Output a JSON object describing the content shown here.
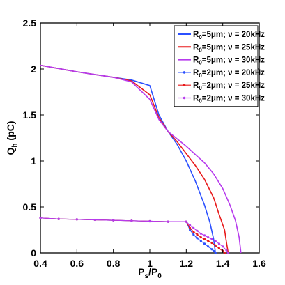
{
  "chart_data": {
    "type": "line",
    "xlabel": "P_s/P_0",
    "ylabel": "Q_h  (pC)",
    "xlim": [
      0.4,
      1.6
    ],
    "ylim": [
      0,
      2.5
    ],
    "xticks": [
      "0.4",
      "0.6",
      "0.8",
      "1",
      "1.2",
      "1.4",
      "1.6"
    ],
    "yticks": [
      "0",
      "0.5",
      "1",
      "1.5",
      "2",
      "2.5"
    ],
    "grid": false,
    "legend_position": "top-right",
    "series": [
      {
        "name": "R0=5μm; ν = 20kHz",
        "label": {
          "main": "R",
          "sub": "0",
          "rest": "=5μm; ν = 20kHz"
        },
        "color": "#2b50ff",
        "marker": "none",
        "x": [
          0.4,
          0.6,
          0.8,
          0.9,
          1.0,
          1.05,
          1.1,
          1.15,
          1.2,
          1.25,
          1.3,
          1.33,
          1.35,
          1.36
        ],
        "y": [
          2.04,
          1.97,
          1.91,
          1.88,
          1.82,
          1.5,
          1.32,
          1.18,
          1.0,
          0.78,
          0.52,
          0.33,
          0.15,
          0.0
        ]
      },
      {
        "name": "R0=5μm; ν = 25kHz",
        "label": {
          "main": "R",
          "sub": "0",
          "rest": "=5μm; ν = 25kHz"
        },
        "color": "#e8191a",
        "marker": "none",
        "x": [
          0.4,
          0.6,
          0.8,
          0.9,
          1.0,
          1.05,
          1.1,
          1.15,
          1.2,
          1.25,
          1.3,
          1.35,
          1.38,
          1.41,
          1.42,
          1.43
        ],
        "y": [
          2.04,
          1.97,
          1.91,
          1.87,
          1.72,
          1.47,
          1.32,
          1.21,
          1.08,
          0.95,
          0.8,
          0.6,
          0.42,
          0.25,
          0.12,
          0.0
        ]
      },
      {
        "name": "R0=5μm; ν = 30kHz",
        "label": {
          "main": "R",
          "sub": "0",
          "rest": "=5μm; ν = 30kHz"
        },
        "color": "#b73bed",
        "marker": "none",
        "x": [
          0.4,
          0.6,
          0.8,
          0.9,
          1.0,
          1.05,
          1.1,
          1.15,
          1.2,
          1.25,
          1.3,
          1.35,
          1.4,
          1.44,
          1.47,
          1.49,
          1.5
        ],
        "y": [
          2.04,
          1.97,
          1.91,
          1.86,
          1.67,
          1.45,
          1.32,
          1.24,
          1.16,
          1.07,
          0.98,
          0.86,
          0.7,
          0.52,
          0.35,
          0.17,
          0.0
        ]
      },
      {
        "name": "R0=2μm; ν = 20kHz",
        "label": {
          "main": "R",
          "sub": "0",
          "rest": "=2μm; ν = 20kHz"
        },
        "color": "#2b50ff",
        "marker": "dot",
        "x": [
          0.4,
          0.5,
          0.6,
          0.7,
          0.8,
          0.9,
          1.0,
          1.1,
          1.2,
          1.22,
          1.24,
          1.26,
          1.28,
          1.3,
          1.32,
          1.34,
          1.35,
          1.36
        ],
        "y": [
          0.38,
          0.37,
          0.365,
          0.36,
          0.355,
          0.35,
          0.345,
          0.34,
          0.34,
          0.25,
          0.2,
          0.16,
          0.13,
          0.1,
          0.07,
          0.04,
          0.02,
          0.0
        ]
      },
      {
        "name": "R0=2μm; ν = 25kHz",
        "label": {
          "main": "R",
          "sub": "0",
          "rest": "=2μm; ν = 25kHz"
        },
        "color": "#e8191a",
        "marker": "dot",
        "x": [
          0.4,
          0.5,
          0.6,
          0.7,
          0.8,
          0.9,
          1.0,
          1.1,
          1.2,
          1.22,
          1.24,
          1.26,
          1.28,
          1.3,
          1.32,
          1.34,
          1.36,
          1.38,
          1.4,
          1.41
        ],
        "y": [
          0.38,
          0.37,
          0.365,
          0.36,
          0.355,
          0.35,
          0.345,
          0.34,
          0.34,
          0.27,
          0.23,
          0.2,
          0.17,
          0.15,
          0.13,
          0.11,
          0.08,
          0.05,
          0.02,
          0.0
        ]
      },
      {
        "name": "R0=2μm; ν = 30kHz",
        "label": {
          "main": "R",
          "sub": "0",
          "rest": "=2μm; ν = 30kHz"
        },
        "color": "#b73bed",
        "marker": "dot",
        "x": [
          0.4,
          0.5,
          0.6,
          0.7,
          0.8,
          0.9,
          1.0,
          1.1,
          1.2,
          1.22,
          1.24,
          1.26,
          1.28,
          1.3,
          1.32,
          1.34,
          1.36,
          1.38,
          1.4,
          1.42,
          1.43
        ],
        "y": [
          0.38,
          0.37,
          0.365,
          0.36,
          0.355,
          0.35,
          0.345,
          0.34,
          0.34,
          0.3,
          0.27,
          0.24,
          0.21,
          0.19,
          0.17,
          0.15,
          0.13,
          0.1,
          0.07,
          0.03,
          0.0
        ]
      }
    ]
  }
}
